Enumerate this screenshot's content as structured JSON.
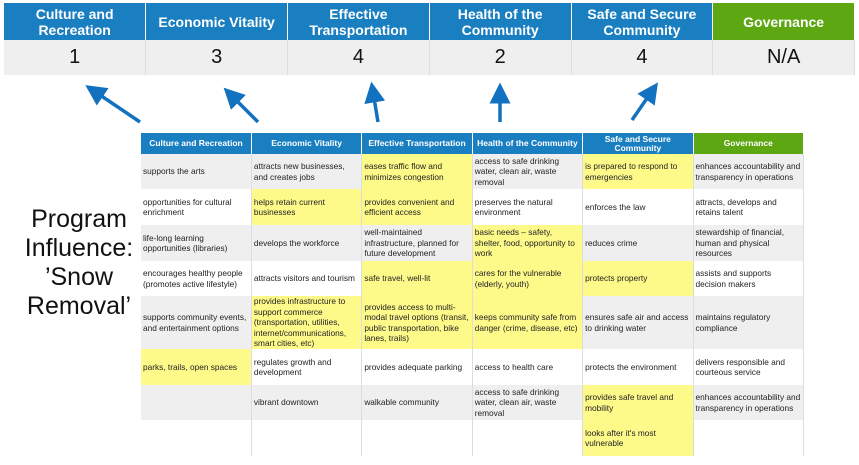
{
  "scores": {
    "headers": [
      "Culture and Recreation",
      "Economic Vitality",
      "Effective Transportation",
      "Health of the Community",
      "Safe and Secure Community",
      "Governance"
    ],
    "values": [
      "1",
      "3",
      "4",
      "2",
      "4",
      "N/A"
    ]
  },
  "label": {
    "line1": "Program",
    "line2": "Influence:",
    "line3": "’Snow",
    "line4": "Removal’"
  },
  "colors": {
    "header_blue": "#1a7fc1",
    "governance_green": "#5da713",
    "highlight_yellow": "#fdfa8a",
    "arrow_blue": "#1272c0"
  },
  "grid": {
    "headers": [
      "Culture and Recreation",
      "Economic Vitality",
      "Effective Transportation",
      "Health of the Community",
      "Safe and Secure Community",
      "Governance"
    ],
    "rows": [
      [
        {
          "text": "supports the arts",
          "hl": false
        },
        {
          "text": "attracts new businesses, and creates jobs",
          "hl": false
        },
        {
          "text": "eases traffic flow and minimizes congestion",
          "hl": true
        },
        {
          "text": "access to safe drinking water, clean air, waste removal",
          "hl": false
        },
        {
          "text": "is prepared to respond to emergencies",
          "hl": true
        },
        {
          "text": "enhances accountability and transparency in operations",
          "hl": false
        }
      ],
      [
        {
          "text": "opportunities for cultural enrichment",
          "hl": false
        },
        {
          "text": "helps retain current businesses",
          "hl": true
        },
        {
          "text": "provides convenient and efficient access",
          "hl": true
        },
        {
          "text": "preserves the natural environment",
          "hl": false
        },
        {
          "text": "enforces the law",
          "hl": false
        },
        {
          "text": "attracts, develops and retains talent",
          "hl": false
        }
      ],
      [
        {
          "text": "life-long learning opportunities (libraries)",
          "hl": false
        },
        {
          "text": "develops the workforce",
          "hl": false
        },
        {
          "text": "well-maintained infrastructure, planned for future development",
          "hl": false
        },
        {
          "text": "basic needs – safety, shelter, food, opportunity to work",
          "hl": true
        },
        {
          "text": "reduces crime",
          "hl": false
        },
        {
          "text": "stewardship of financial, human and physical resources",
          "hl": false
        }
      ],
      [
        {
          "text": "encourages healthy people (promotes active lifestyle)",
          "hl": false
        },
        {
          "text": "attracts visitors and tourism",
          "hl": false
        },
        {
          "text": "safe travel, well-lit",
          "hl": true
        },
        {
          "text": "cares for the vulnerable (elderly, youth)",
          "hl": true
        },
        {
          "text": "protects property",
          "hl": true
        },
        {
          "text": "assists and supports decision makers",
          "hl": false
        }
      ],
      [
        {
          "text": "supports community events, and entertainment options",
          "hl": false
        },
        {
          "text": "provides infrastructure to support commerce (transportation, utilities, internet/communications, smart cities, etc)",
          "hl": true
        },
        {
          "text": "provides access to multi-modal travel options (transit, public transportation, bike lanes, trails)",
          "hl": true
        },
        {
          "text": "keeps community safe from danger (crime, disease, etc)",
          "hl": true
        },
        {
          "text": "ensures safe air and access to drinking water",
          "hl": false
        },
        {
          "text": "maintains regulatory compliance",
          "hl": false
        }
      ],
      [
        {
          "text": "parks, trails, open spaces",
          "hl": true
        },
        {
          "text": "regulates growth and development",
          "hl": false
        },
        {
          "text": "provides adequate parking",
          "hl": false
        },
        {
          "text": "access to health care",
          "hl": false
        },
        {
          "text": "protects the environment",
          "hl": false
        },
        {
          "text": "delivers responsible and courteous service",
          "hl": false
        }
      ],
      [
        {
          "text": "",
          "hl": false
        },
        {
          "text": "vibrant downtown",
          "hl": false
        },
        {
          "text": "walkable community",
          "hl": false
        },
        {
          "text": "access to safe drinking water, clean air, waste removal",
          "hl": false
        },
        {
          "text": "provides safe travel and mobility",
          "hl": true
        },
        {
          "text": "enhances accountability and transparency in operations",
          "hl": false
        }
      ],
      [
        {
          "text": "",
          "hl": false
        },
        {
          "text": "",
          "hl": false
        },
        {
          "text": "",
          "hl": false
        },
        {
          "text": "",
          "hl": false
        },
        {
          "text": "looks after it's most vulnerable",
          "hl": true
        },
        {
          "text": "",
          "hl": false
        }
      ]
    ]
  }
}
